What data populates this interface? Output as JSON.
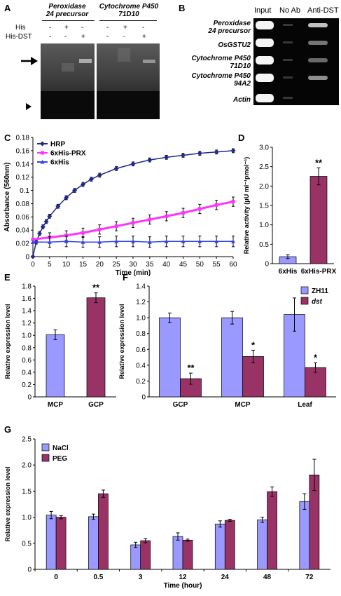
{
  "panelA": {
    "letter": "A",
    "gene1": "Peroxidase 24 precursor",
    "gene1_l1": "Peroxidase",
    "gene1_l2": "24 precursor",
    "gene2": "Cytochrome P450 71D10",
    "gene2_l1": "Cytochrome P450",
    "gene2_l2": "71D10",
    "row1_label": "His",
    "row2_label": "His-DST",
    "row1": [
      "-",
      "+",
      "-",
      "-",
      "+",
      "-"
    ],
    "row2": [
      "-",
      "-",
      "+",
      "-",
      "-",
      "+"
    ],
    "arrow_icon": "arrow-right-icon",
    "triangle_icon": "triangle-right-icon"
  },
  "panelB": {
    "letter": "B",
    "headers": [
      "Input",
      "No Ab",
      "Anti-DST"
    ],
    "rows": [
      {
        "l1": "Peroxidase",
        "l2": "24 precursor"
      },
      {
        "l1": "OsGSTU2",
        "l2": ""
      },
      {
        "l1": "Cytochrome P450",
        "l2": "71D10"
      },
      {
        "l1": "Cytochrome P450",
        "l2": "94A2"
      },
      {
        "l1": "Actin",
        "l2": ""
      }
    ]
  },
  "chart_data": [
    {
      "panel": "C",
      "type": "line",
      "xlabel": "Time (min)",
      "ylabel": "Absorbance (560nm)",
      "xlim": [
        0,
        60
      ],
      "ylim": [
        0,
        0.18
      ],
      "xticks": [
        "0",
        "5",
        "10",
        "15",
        "20",
        "25",
        "30",
        "35",
        "40",
        "45",
        "50",
        "55",
        "60"
      ],
      "yticks": [
        "0",
        "0.02",
        "0.04",
        "0.06",
        "0.08",
        "0.1",
        "0.12",
        "0.14",
        "0.16",
        "0.18"
      ],
      "legend": "top-left",
      "series": [
        {
          "name": "HRP",
          "color": "#1f2a8a",
          "x": [
            0,
            1,
            2,
            3,
            4,
            5,
            7.5,
            10,
            12.5,
            15,
            17.5,
            20,
            25,
            30,
            35,
            40,
            45,
            50,
            55,
            60
          ],
          "y": [
            0.0,
            0.022,
            0.035,
            0.045,
            0.053,
            0.061,
            0.076,
            0.089,
            0.1,
            0.109,
            0.117,
            0.123,
            0.133,
            0.14,
            0.146,
            0.15,
            0.153,
            0.156,
            0.158,
            0.16
          ],
          "err": 0.003
        },
        {
          "name": "6xHis-PRX",
          "color": "#ff33ff",
          "x": [
            0,
            5,
            10,
            15,
            20,
            25,
            30,
            35,
            40,
            45,
            50,
            55,
            60
          ],
          "y": [
            0.026,
            0.029,
            0.032,
            0.036,
            0.041,
            0.046,
            0.051,
            0.056,
            0.061,
            0.066,
            0.072,
            0.078,
            0.083
          ],
          "err": 0.007
        },
        {
          "name": "6xHis",
          "color": "#3344ee",
          "x": [
            0,
            5,
            10,
            15,
            20,
            25,
            30,
            35,
            40,
            45,
            50,
            55,
            60
          ],
          "y": [
            0.022,
            0.022,
            0.023,
            0.022,
            0.022,
            0.023,
            0.023,
            0.022,
            0.023,
            0.023,
            0.023,
            0.023,
            0.023
          ],
          "err": 0.008
        }
      ]
    },
    {
      "panel": "D",
      "type": "bar",
      "categories": [
        "6xHis",
        "6xHis-PRX"
      ],
      "values": [
        0.18,
        2.25
      ],
      "errors": [
        0.05,
        0.22
      ],
      "colors": [
        "#9999ff",
        "#993366"
      ],
      "annotations": [
        "",
        "**"
      ],
      "ylabel": "Relative activity (μU ml⁻¹pmol⁻¹)",
      "ylim": [
        0,
        3.0
      ],
      "yticks": [
        "0",
        "0.5",
        "1.0",
        "1.5",
        "2.0",
        "2.5",
        "3.0"
      ]
    },
    {
      "panel": "E",
      "type": "bar",
      "categories": [
        "MCP",
        "GCP"
      ],
      "values": [
        1.01,
        1.61
      ],
      "errors": [
        0.08,
        0.08
      ],
      "colors": [
        "#9999ff",
        "#993366"
      ],
      "annotations": [
        "",
        "**"
      ],
      "ylabel": "Relative expression level",
      "ylim": [
        0,
        1.8
      ],
      "yticks": [
        "0",
        "0.2",
        "0.4",
        "0.6",
        "0.8",
        "1.0",
        "1.2",
        "1.4",
        "1.6",
        "1.8"
      ]
    },
    {
      "panel": "F",
      "type": "bar",
      "categories": [
        "GCP",
        "MCP",
        "Leaf"
      ],
      "series": [
        {
          "name": "ZH11",
          "values": [
            1.0,
            1.0,
            1.04
          ],
          "errors": [
            0.06,
            0.08,
            0.21
          ],
          "color": "#9999ff",
          "annotations": [
            "",
            "",
            ""
          ]
        },
        {
          "name": "dst",
          "values": [
            0.23,
            0.51,
            0.37
          ],
          "errors": [
            0.07,
            0.08,
            0.06
          ],
          "color": "#993366",
          "annotations": [
            "**",
            "*",
            "*"
          ]
        }
      ],
      "ylabel": "Relative expression level",
      "ylim": [
        0,
        1.4
      ],
      "yticks": [
        "0",
        "0.2",
        "0.4",
        "0.6",
        "0.8",
        "1.0",
        "1.2",
        "1.4"
      ],
      "legend": "top-right"
    },
    {
      "panel": "G",
      "type": "bar",
      "categories": [
        "0",
        "0.5",
        "3",
        "12",
        "24",
        "48",
        "72"
      ],
      "series": [
        {
          "name": "NaCl",
          "values": [
            1.04,
            1.01,
            0.47,
            0.63,
            0.87,
            0.95,
            1.3
          ],
          "errors": [
            0.07,
            0.05,
            0.05,
            0.07,
            0.06,
            0.05,
            0.15
          ],
          "color": "#9999ff"
        },
        {
          "name": "PEG",
          "values": [
            1.0,
            1.45,
            0.55,
            0.56,
            0.94,
            1.49,
            1.81
          ],
          "errors": [
            0.03,
            0.07,
            0.04,
            0.02,
            0.02,
            0.09,
            0.3
          ],
          "color": "#993366"
        }
      ],
      "xlabel": "Time (hour)",
      "ylabel": "Relative expression level",
      "ylim": [
        0,
        2.5
      ],
      "yticks": [
        "0",
        "0.5",
        "1.0",
        "1.5",
        "2.0",
        "2.5"
      ],
      "legend": "top-left"
    }
  ],
  "letters": {
    "C": "C",
    "D": "D",
    "E": "E",
    "F": "F",
    "G": "G"
  }
}
